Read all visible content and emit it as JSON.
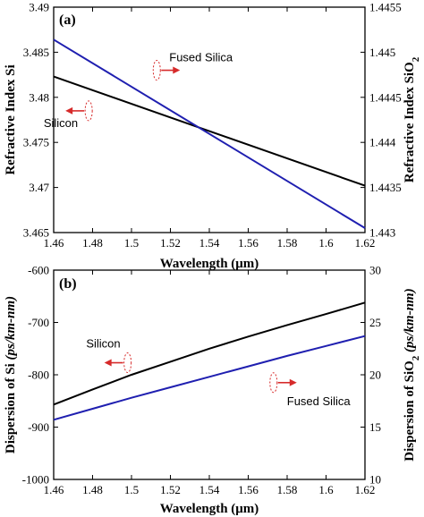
{
  "colors": {
    "silicon": "#000000",
    "fused_silica": "#1f1fb0",
    "arrow": "#d62a2a"
  },
  "chart_data": [
    {
      "type": "line",
      "panel_label": "(a)",
      "xlabel": "Wavelength (μm)",
      "ylabel_left": "Refractive Index Si",
      "ylabel_right_main": "Refractive Index SiO",
      "ylabel_right_sub": "2",
      "xlim": [
        1.46,
        1.62
      ],
      "ylim_left": [
        3.465,
        3.49
      ],
      "ylim_right": [
        1.443,
        1.4455
      ],
      "xticks": [
        "1.46",
        "1.48",
        "1.5",
        "1.52",
        "1.54",
        "1.56",
        "1.58",
        "1.6",
        "1.62"
      ],
      "yticks_left": [
        "3.465",
        "3.47",
        "3.475",
        "3.48",
        "3.485",
        "3.49"
      ],
      "yticks_right": [
        "1.443",
        "1.4435",
        "1.444",
        "1.4445",
        "1.445",
        "1.4455"
      ],
      "grid": false,
      "series": [
        {
          "name": "Silicon",
          "axis": "left",
          "color": "#000000",
          "x": [
            1.46,
            1.62
          ],
          "y": [
            3.4823,
            3.4702
          ]
        },
        {
          "name": "Fused Silica",
          "axis": "right",
          "color": "#1f1fb0",
          "x": [
            1.46,
            1.62
          ],
          "y": [
            1.44514,
            1.44305
          ]
        }
      ],
      "annotations": [
        {
          "text": "Fused Silica",
          "x": 1.513,
          "y": 1.4448,
          "axis": "right",
          "arrow": "right"
        },
        {
          "text": "Silicon",
          "x": 1.478,
          "y": 3.4785,
          "axis": "left",
          "arrow": "left"
        }
      ]
    },
    {
      "type": "line",
      "panel_label": "(b)",
      "xlabel": "Wavelength (μm)",
      "ylabel_left_main": "Dispersion of Si ",
      "ylabel_left_unit": "(ps/km-nm)",
      "ylabel_right_main": "Dispersion of SiO",
      "ylabel_right_sub": "2",
      "ylabel_right_unit": "(ps/km-nm)",
      "xlim": [
        1.46,
        1.62
      ],
      "ylim_left": [
        -1000,
        -600
      ],
      "ylim_right": [
        10,
        30
      ],
      "xticks": [
        "1.46",
        "1.48",
        "1.5",
        "1.52",
        "1.54",
        "1.56",
        "1.58",
        "1.6",
        "1.62"
      ],
      "yticks_left": [
        "-1000",
        "-900",
        "-800",
        "-700",
        "-600"
      ],
      "yticks_right": [
        "10",
        "15",
        "20",
        "25",
        "30"
      ],
      "grid": false,
      "series": [
        {
          "name": "Silicon",
          "axis": "left",
          "color": "#000000",
          "x": [
            1.46,
            1.48,
            1.5,
            1.52,
            1.54,
            1.56,
            1.58,
            1.6,
            1.62
          ],
          "y": [
            -857,
            -828,
            -800,
            -775,
            -750,
            -727,
            -705,
            -684,
            -662
          ]
        },
        {
          "name": "Fused Silica",
          "axis": "right",
          "color": "#1f1fb0",
          "x": [
            1.46,
            1.48,
            1.5,
            1.52,
            1.54,
            1.56,
            1.58,
            1.6,
            1.62
          ],
          "y": [
            15.7,
            16.75,
            17.8,
            18.8,
            19.8,
            20.8,
            21.8,
            22.75,
            23.7
          ]
        }
      ],
      "annotations": [
        {
          "text": "Silicon",
          "x": 1.498,
          "y": -777,
          "axis": "left",
          "arrow": "left"
        },
        {
          "text": "Fused Silica",
          "x": 1.573,
          "y": -815,
          "axis": "left",
          "arrow": "right"
        }
      ]
    }
  ]
}
